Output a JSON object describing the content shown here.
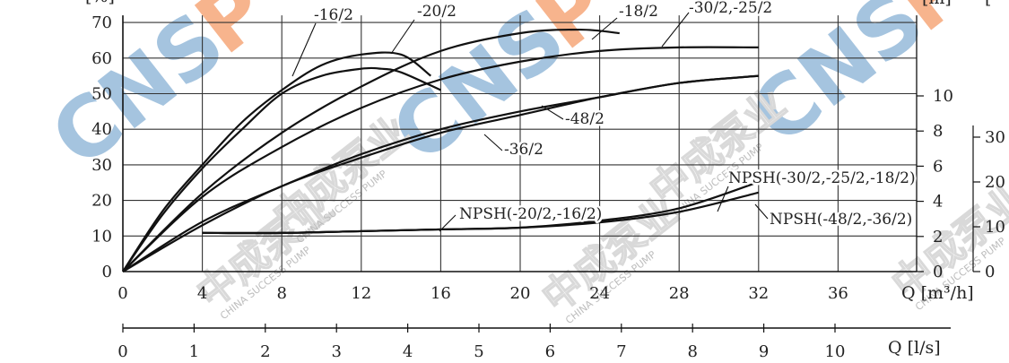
{
  "chart_data": {
    "type": "line",
    "title": "",
    "x_axis_primary": {
      "label": "Q [m³/h]",
      "ticks": [
        0,
        4,
        8,
        12,
        16,
        20,
        24,
        28,
        32,
        36
      ],
      "range": [
        0,
        40
      ]
    },
    "x_axis_secondary": {
      "label": "Q [l/s]",
      "ticks": [
        0,
        1,
        2,
        3,
        4,
        5,
        6,
        7,
        8,
        9,
        10
      ],
      "range": [
        0,
        11.1
      ]
    },
    "y_axis_left": {
      "label": "[%]",
      "ticks": [
        0,
        10,
        20,
        30,
        40,
        50,
        60,
        70
      ],
      "range": [
        0,
        75
      ]
    },
    "y_axis_npsh": {
      "label": "[m]",
      "ticks": [
        0,
        2,
        4,
        6,
        8,
        10
      ]
    },
    "y_axis_far": {
      "label": "[",
      "ticks": [
        0,
        10,
        20,
        30
      ]
    },
    "grid": true,
    "series": [
      {
        "name": "-16/2",
        "group": "efficiency",
        "x": [
          0,
          2,
          4,
          6,
          8,
          10,
          12,
          14,
          15.5
        ],
        "y": [
          0,
          17,
          30,
          42,
          51,
          58,
          61,
          61,
          55
        ]
      },
      {
        "name": "-20/2",
        "group": "efficiency",
        "x": [
          0,
          2,
          4,
          6,
          8,
          10,
          12,
          13,
          14,
          16
        ],
        "y": [
          0,
          16,
          29,
          40,
          50,
          55,
          57,
          57,
          56,
          51
        ]
      },
      {
        "name": "-18/2",
        "group": "efficiency",
        "x": [
          0,
          4,
          8,
          12,
          16,
          20,
          23,
          25
        ],
        "y": [
          0,
          22,
          39,
          52,
          62,
          67,
          68,
          67
        ]
      },
      {
        "name": "-30/2,-25/2",
        "group": "efficiency",
        "x": [
          0,
          4,
          8,
          12,
          16,
          20,
          24,
          28,
          32
        ],
        "y": [
          0,
          21,
          35,
          46,
          54,
          59,
          62,
          63,
          63
        ]
      },
      {
        "name": "-48/2",
        "group": "efficiency",
        "x": [
          0,
          4,
          8,
          12,
          16,
          20,
          24,
          28,
          32
        ],
        "y": [
          0,
          14,
          24,
          33,
          40,
          45,
          49,
          53,
          55
        ]
      },
      {
        "name": "-36/2",
        "group": "efficiency",
        "x": [
          0,
          4,
          8,
          12,
          16,
          20,
          24,
          28,
          32
        ],
        "y": [
          0,
          13,
          24,
          32,
          39,
          44,
          49,
          53,
          55
        ]
      },
      {
        "name": "NPSH(-20/2,-16/2)",
        "group": "npsh",
        "x": [
          4,
          8,
          12,
          16
        ],
        "y": [
          2.2,
          2.2,
          2.3,
          2.4
        ]
      },
      {
        "name": "NPSH(-30/2,-25/2,-18/2)",
        "group": "npsh",
        "x": [
          4,
          8,
          12,
          16,
          20,
          24,
          28,
          32
        ],
        "y": [
          2.2,
          2.2,
          2.3,
          2.4,
          2.5,
          2.9,
          3.6,
          5.1
        ]
      },
      {
        "name": "NPSH(-48/2,-36/2)",
        "group": "npsh",
        "x": [
          4,
          8,
          12,
          16,
          20,
          24,
          28,
          32
        ],
        "y": [
          2.2,
          2.2,
          2.3,
          2.4,
          2.5,
          2.8,
          3.4,
          4.5
        ]
      }
    ]
  },
  "watermark": {
    "brand": "CNSP",
    "company": "中成泵业",
    "subtext": "CHINA SUCCESS PUMP",
    "colors": {
      "orange": "#f6a77a",
      "blue": "#8fb6d8"
    }
  }
}
